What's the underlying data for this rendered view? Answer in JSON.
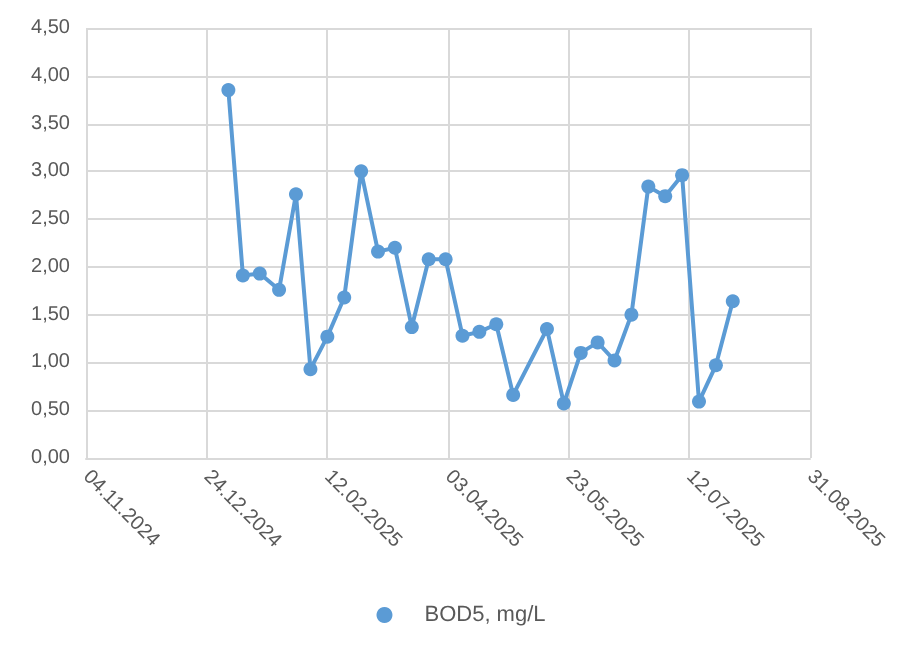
{
  "chart_data": {
    "type": "line",
    "x": [
      "2025-01-02",
      "2025-01-08",
      "2025-01-15",
      "2025-01-23",
      "2025-01-30",
      "2025-02-05",
      "2025-02-12",
      "2025-02-19",
      "2025-02-26",
      "2025-03-05",
      "2025-03-12",
      "2025-03-19",
      "2025-03-26",
      "2025-04-02",
      "2025-04-09",
      "2025-04-16",
      "2025-04-23",
      "2025-04-30",
      "2025-05-14",
      "2025-05-21",
      "2025-05-28",
      "2025-06-04",
      "2025-06-11",
      "2025-06-18",
      "2025-06-25",
      "2025-07-02",
      "2025-07-09",
      "2025-07-16",
      "2025-07-23",
      "2025-07-30"
    ],
    "series": [
      {
        "name": "BOD5, mg/L",
        "color": "#5b9bd5",
        "values": [
          3.85,
          1.91,
          1.93,
          1.76,
          2.76,
          0.93,
          1.27,
          1.68,
          3.0,
          2.16,
          2.2,
          1.37,
          2.08,
          2.08,
          1.28,
          1.32,
          1.4,
          0.66,
          1.35,
          0.57,
          1.1,
          1.21,
          1.02,
          1.5,
          2.84,
          2.74,
          2.96,
          0.59,
          0.97,
          1.64
        ]
      }
    ],
    "xlim": [
      "2024-11-04",
      "2025-08-31"
    ],
    "xticks": [
      {
        "value": "2024-11-04",
        "label": "04.11.2024"
      },
      {
        "value": "2024-12-24",
        "label": "24.12.2024"
      },
      {
        "value": "2025-02-12",
        "label": "12.02.2025"
      },
      {
        "value": "2025-04-03",
        "label": "03.04.2025"
      },
      {
        "value": "2025-05-23",
        "label": "23.05.2025"
      },
      {
        "value": "2025-07-12",
        "label": "12.07.2025"
      },
      {
        "value": "2025-08-31",
        "label": "31.08.2025"
      }
    ],
    "ylim": [
      0,
      4.5
    ],
    "yticks": [
      {
        "value": 0,
        "label": "0,00"
      },
      {
        "value": 0.5,
        "label": "0,50"
      },
      {
        "value": 1,
        "label": "1,00"
      },
      {
        "value": 1.5,
        "label": "1,50"
      },
      {
        "value": 2,
        "label": "2,00"
      },
      {
        "value": 2.5,
        "label": "2,50"
      },
      {
        "value": 3,
        "label": "3,00"
      },
      {
        "value": 3.5,
        "label": "3,50"
      },
      {
        "value": 4,
        "label": "4,00"
      },
      {
        "value": 4.5,
        "label": "4,50"
      }
    ],
    "grid": true,
    "legend": "bottom",
    "marker": "circle",
    "line_style": "solid"
  }
}
